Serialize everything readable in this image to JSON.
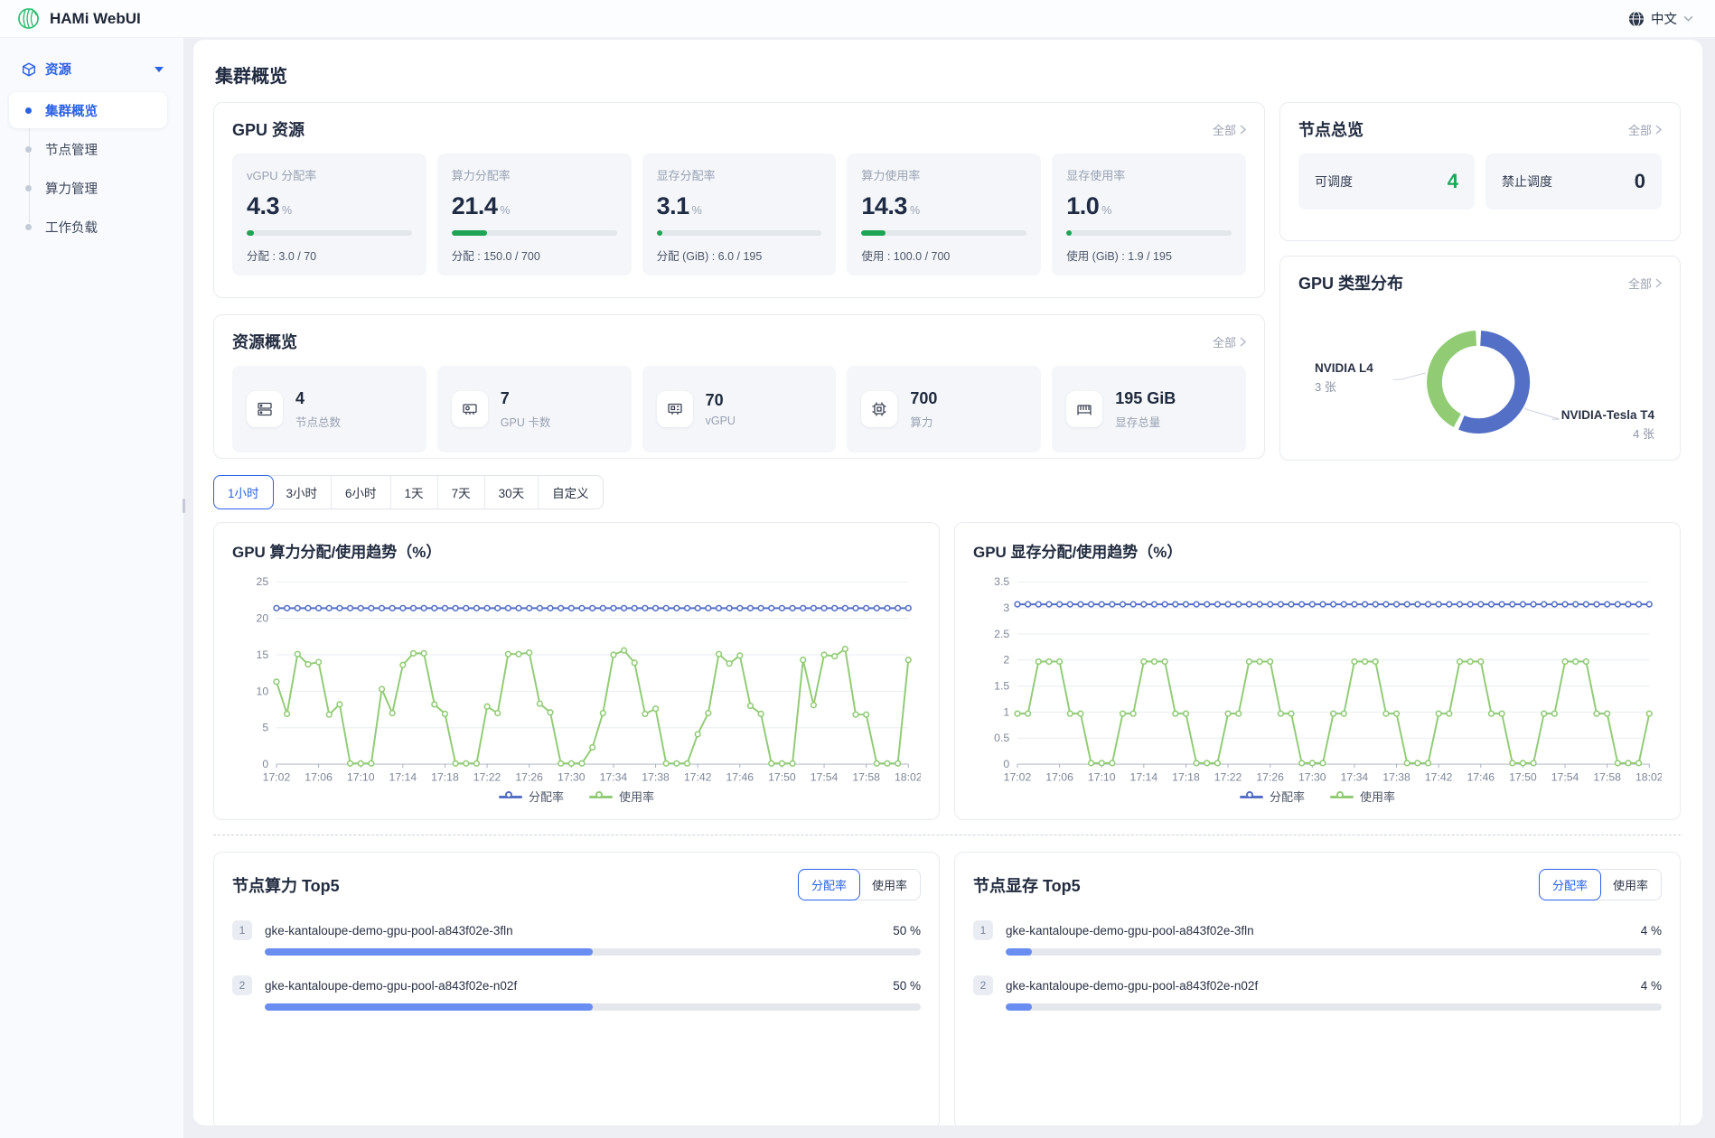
{
  "topbar": {
    "app_title": "HAMi WebUI",
    "language": "中文"
  },
  "sidebar": {
    "group_label": "资源",
    "items": [
      {
        "label": "集群概览",
        "active": true
      },
      {
        "label": "节点管理",
        "active": false
      },
      {
        "label": "算力管理",
        "active": false
      },
      {
        "label": "工作负载",
        "active": false
      }
    ]
  },
  "page": {
    "title": "集群概览"
  },
  "gpu_resources": {
    "title": "GPU 资源",
    "more_label": "全部",
    "metrics": [
      {
        "label": "vGPU 分配率",
        "value": "4.3",
        "unit": "%",
        "percent": 4.3,
        "caption": "分配 : 3.0 / 70"
      },
      {
        "label": "算力分配率",
        "value": "21.4",
        "unit": "%",
        "percent": 21.4,
        "caption": "分配 : 150.0 / 700"
      },
      {
        "label": "显存分配率",
        "value": "3.1",
        "unit": "%",
        "percent": 3.1,
        "caption": "分配 (GiB) : 6.0 / 195"
      },
      {
        "label": "算力使用率",
        "value": "14.3",
        "unit": "%",
        "percent": 14.3,
        "caption": "使用 : 100.0 / 700"
      },
      {
        "label": "显存使用率",
        "value": "1.0",
        "unit": "%",
        "percent": 1.0,
        "caption": "使用 (GiB) : 1.9 / 195"
      }
    ]
  },
  "resource_overview": {
    "title": "资源概览",
    "more_label": "全部",
    "items": [
      {
        "value": "4",
        "label": "节点总数"
      },
      {
        "value": "7",
        "label": "GPU 卡数"
      },
      {
        "value": "70",
        "label": "vGPU"
      },
      {
        "value": "700",
        "label": "算力"
      },
      {
        "value": "195 GiB",
        "label": "显存总量"
      }
    ]
  },
  "node_overview": {
    "title": "节点总览",
    "more_label": "全部",
    "schedulable": {
      "label": "可调度",
      "value": "4"
    },
    "unschedulable": {
      "label": "禁止调度",
      "value": "0"
    }
  },
  "gpu_type": {
    "title": "GPU 类型分布",
    "more_label": "全部"
  },
  "time_tabs": {
    "items": [
      "1小时",
      "3小时",
      "6小时",
      "1天",
      "7天",
      "30天",
      "自定义"
    ],
    "active_index": 0
  },
  "chart_data": [
    {
      "id": "donut",
      "type": "pie",
      "title": "GPU 类型分布",
      "unit": "张",
      "series": [
        {
          "name": "NVIDIA-Tesla T4",
          "value": 4,
          "count_label": "4 张",
          "color": "#5470c6"
        },
        {
          "name": "NVIDIA L4",
          "value": 3,
          "count_label": "3 张",
          "color": "#91cc75"
        }
      ]
    },
    {
      "id": "compute-trend",
      "type": "line",
      "title": "GPU 算力分配/使用趋势（%）",
      "ylim": [
        0,
        25
      ],
      "yticks": [
        0,
        5,
        10,
        15,
        20,
        25
      ],
      "x_tick_labels": [
        "17:02",
        "17:06",
        "17:10",
        "17:14",
        "17:18",
        "17:22",
        "17:26",
        "17:30",
        "17:34",
        "17:38",
        "17:42",
        "17:46",
        "17:50",
        "17:54",
        "17:58",
        "18:02"
      ],
      "tick_every": 4,
      "legend": [
        "分配率",
        "使用率"
      ],
      "series": [
        {
          "name": "分配率",
          "color": "#5470c6",
          "values": [
            21.4,
            21.4,
            21.4,
            21.4,
            21.4,
            21.4,
            21.4,
            21.4,
            21.4,
            21.4,
            21.4,
            21.4,
            21.4,
            21.4,
            21.4,
            21.4,
            21.4,
            21.4,
            21.4,
            21.4,
            21.4,
            21.4,
            21.4,
            21.4,
            21.4,
            21.4,
            21.4,
            21.4,
            21.4,
            21.4,
            21.4,
            21.4,
            21.4,
            21.4,
            21.4,
            21.4,
            21.4,
            21.4,
            21.4,
            21.4,
            21.4,
            21.4,
            21.4,
            21.4,
            21.4,
            21.4,
            21.4,
            21.4,
            21.4,
            21.4,
            21.4,
            21.4,
            21.4,
            21.4,
            21.4,
            21.4,
            21.4,
            21.4,
            21.4,
            21.4,
            21.4
          ]
        },
        {
          "name": "使用率",
          "color": "#91cc75",
          "values": [
            11.3,
            6.9,
            15.1,
            13.7,
            14,
            6.8,
            8.2,
            0.1,
            0.1,
            0.1,
            10.3,
            7,
            13.6,
            15.2,
            15.2,
            8.2,
            6.9,
            0.1,
            0.1,
            0.1,
            7.9,
            7,
            15.1,
            15.1,
            15.3,
            8.3,
            7.1,
            0.1,
            0.1,
            0.1,
            2.3,
            7,
            15,
            15.6,
            13.9,
            6.9,
            7.6,
            0.1,
            0.1,
            0.1,
            4.1,
            7,
            15.1,
            13.8,
            14.9,
            8,
            6.9,
            0.1,
            0.1,
            0.1,
            14.3,
            8.1,
            15,
            14.8,
            15.8,
            6.8,
            6.8,
            0.1,
            0.1,
            0.1,
            14.3
          ]
        }
      ]
    },
    {
      "id": "memory-trend",
      "type": "line",
      "title": "GPU 显存分配/使用趋势（%）",
      "ylim": [
        0,
        3.5
      ],
      "yticks": [
        0,
        0.5,
        1,
        1.5,
        2,
        2.5,
        3,
        3.5
      ],
      "x_tick_labels": [
        "17:02",
        "17:06",
        "17:10",
        "17:14",
        "17:18",
        "17:22",
        "17:26",
        "17:30",
        "17:34",
        "17:38",
        "17:42",
        "17:46",
        "17:50",
        "17:54",
        "17:58",
        "18:02"
      ],
      "tick_every": 4,
      "legend": [
        "分配率",
        "使用率"
      ],
      "series": [
        {
          "name": "分配率",
          "color": "#5470c6",
          "values": [
            3.07,
            3.07,
            3.07,
            3.07,
            3.07,
            3.07,
            3.07,
            3.07,
            3.07,
            3.07,
            3.07,
            3.07,
            3.07,
            3.07,
            3.07,
            3.07,
            3.07,
            3.07,
            3.07,
            3.07,
            3.07,
            3.07,
            3.07,
            3.07,
            3.07,
            3.07,
            3.07,
            3.07,
            3.07,
            3.07,
            3.07,
            3.07,
            3.07,
            3.07,
            3.07,
            3.07,
            3.07,
            3.07,
            3.07,
            3.07,
            3.07,
            3.07,
            3.07,
            3.07,
            3.07,
            3.07,
            3.07,
            3.07,
            3.07,
            3.07,
            3.07,
            3.07,
            3.07,
            3.07,
            3.07,
            3.07,
            3.07,
            3.07,
            3.07,
            3.07,
            3.07
          ]
        },
        {
          "name": "使用率",
          "color": "#91cc75",
          "values": [
            0.97,
            0.97,
            1.97,
            1.97,
            1.97,
            0.97,
            0.97,
            0.02,
            0.02,
            0.02,
            0.97,
            0.97,
            1.97,
            1.97,
            1.97,
            0.97,
            0.97,
            0.02,
            0.02,
            0.02,
            0.97,
            0.97,
            1.97,
            1.97,
            1.97,
            0.97,
            0.97,
            0.02,
            0.02,
            0.02,
            0.97,
            0.97,
            1.97,
            1.97,
            1.97,
            0.97,
            0.97,
            0.02,
            0.02,
            0.02,
            0.97,
            0.97,
            1.97,
            1.97,
            1.97,
            0.97,
            0.97,
            0.02,
            0.02,
            0.02,
            0.97,
            0.97,
            1.97,
            1.97,
            1.97,
            0.97,
            0.97,
            0.02,
            0.02,
            0.02,
            0.97
          ]
        }
      ]
    }
  ],
  "top5": [
    {
      "title": "节点算力 Top5",
      "toggle": [
        "分配率",
        "使用率"
      ],
      "active_toggle": 0,
      "rows": [
        {
          "rank": "1",
          "name": "gke-kantaloupe-demo-gpu-pool-a843f02e-3fln",
          "value": "50 %",
          "percent": 50
        },
        {
          "rank": "2",
          "name": "gke-kantaloupe-demo-gpu-pool-a843f02e-n02f",
          "value": "50 %",
          "percent": 50
        }
      ]
    },
    {
      "title": "节点显存 Top5",
      "toggle": [
        "分配率",
        "使用率"
      ],
      "active_toggle": 0,
      "rows": [
        {
          "rank": "1",
          "name": "gke-kantaloupe-demo-gpu-pool-a843f02e-3fln",
          "value": "4 %",
          "percent": 4
        },
        {
          "rank": "2",
          "name": "gke-kantaloupe-demo-gpu-pool-a843f02e-n02f",
          "value": "4 %",
          "percent": 4
        }
      ]
    }
  ]
}
